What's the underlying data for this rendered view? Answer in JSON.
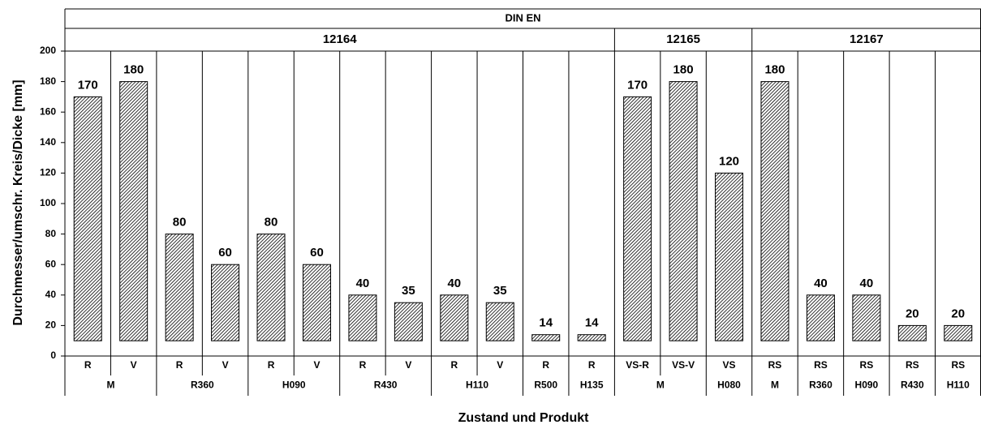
{
  "chart_data": {
    "type": "bar",
    "title": "",
    "header_top": "DIN EN",
    "groups": [
      {
        "label": "12164",
        "span": 12
      },
      {
        "label": "12165",
        "span": 3
      },
      {
        "label": "12167",
        "span": 5
      }
    ],
    "categories": [
      "R",
      "V",
      "R",
      "V",
      "R",
      "V",
      "R",
      "V",
      "R",
      "V",
      "R",
      "R",
      "VS-R",
      "VS-V",
      "VS",
      "RS",
      "RS",
      "RS",
      "RS",
      "RS"
    ],
    "products": [
      {
        "label": "M",
        "span": 2
      },
      {
        "label": "R360",
        "span": 2
      },
      {
        "label": "H090",
        "span": 2
      },
      {
        "label": "R430",
        "span": 2
      },
      {
        "label": "H110",
        "span": 2
      },
      {
        "label": "R500",
        "span": 1
      },
      {
        "label": "H135",
        "span": 1
      },
      {
        "label": "M",
        "span": 2
      },
      {
        "label": "H080",
        "span": 1
      },
      {
        "label": "M",
        "span": 1
      },
      {
        "label": "R360",
        "span": 1
      },
      {
        "label": "H090",
        "span": 1
      },
      {
        "label": "R430",
        "span": 1
      },
      {
        "label": "H110",
        "span": 1
      }
    ],
    "values": [
      170,
      180,
      80,
      60,
      80,
      60,
      40,
      35,
      40,
      35,
      14,
      14,
      170,
      180,
      120,
      180,
      40,
      40,
      20,
      20
    ],
    "bar_base": 10,
    "ylim": [
      0,
      200
    ],
    "yticks": [
      0,
      20,
      40,
      60,
      80,
      100,
      120,
      140,
      160,
      180,
      200
    ],
    "ylabel": "Durchmesser/umschr. Kreis/Dicke [mm]",
    "xlabel": "Zustand und Produkt",
    "grid": false,
    "bar_fill": "hatched",
    "colors": {
      "stroke": "#000000",
      "background": "#ffffff"
    }
  }
}
